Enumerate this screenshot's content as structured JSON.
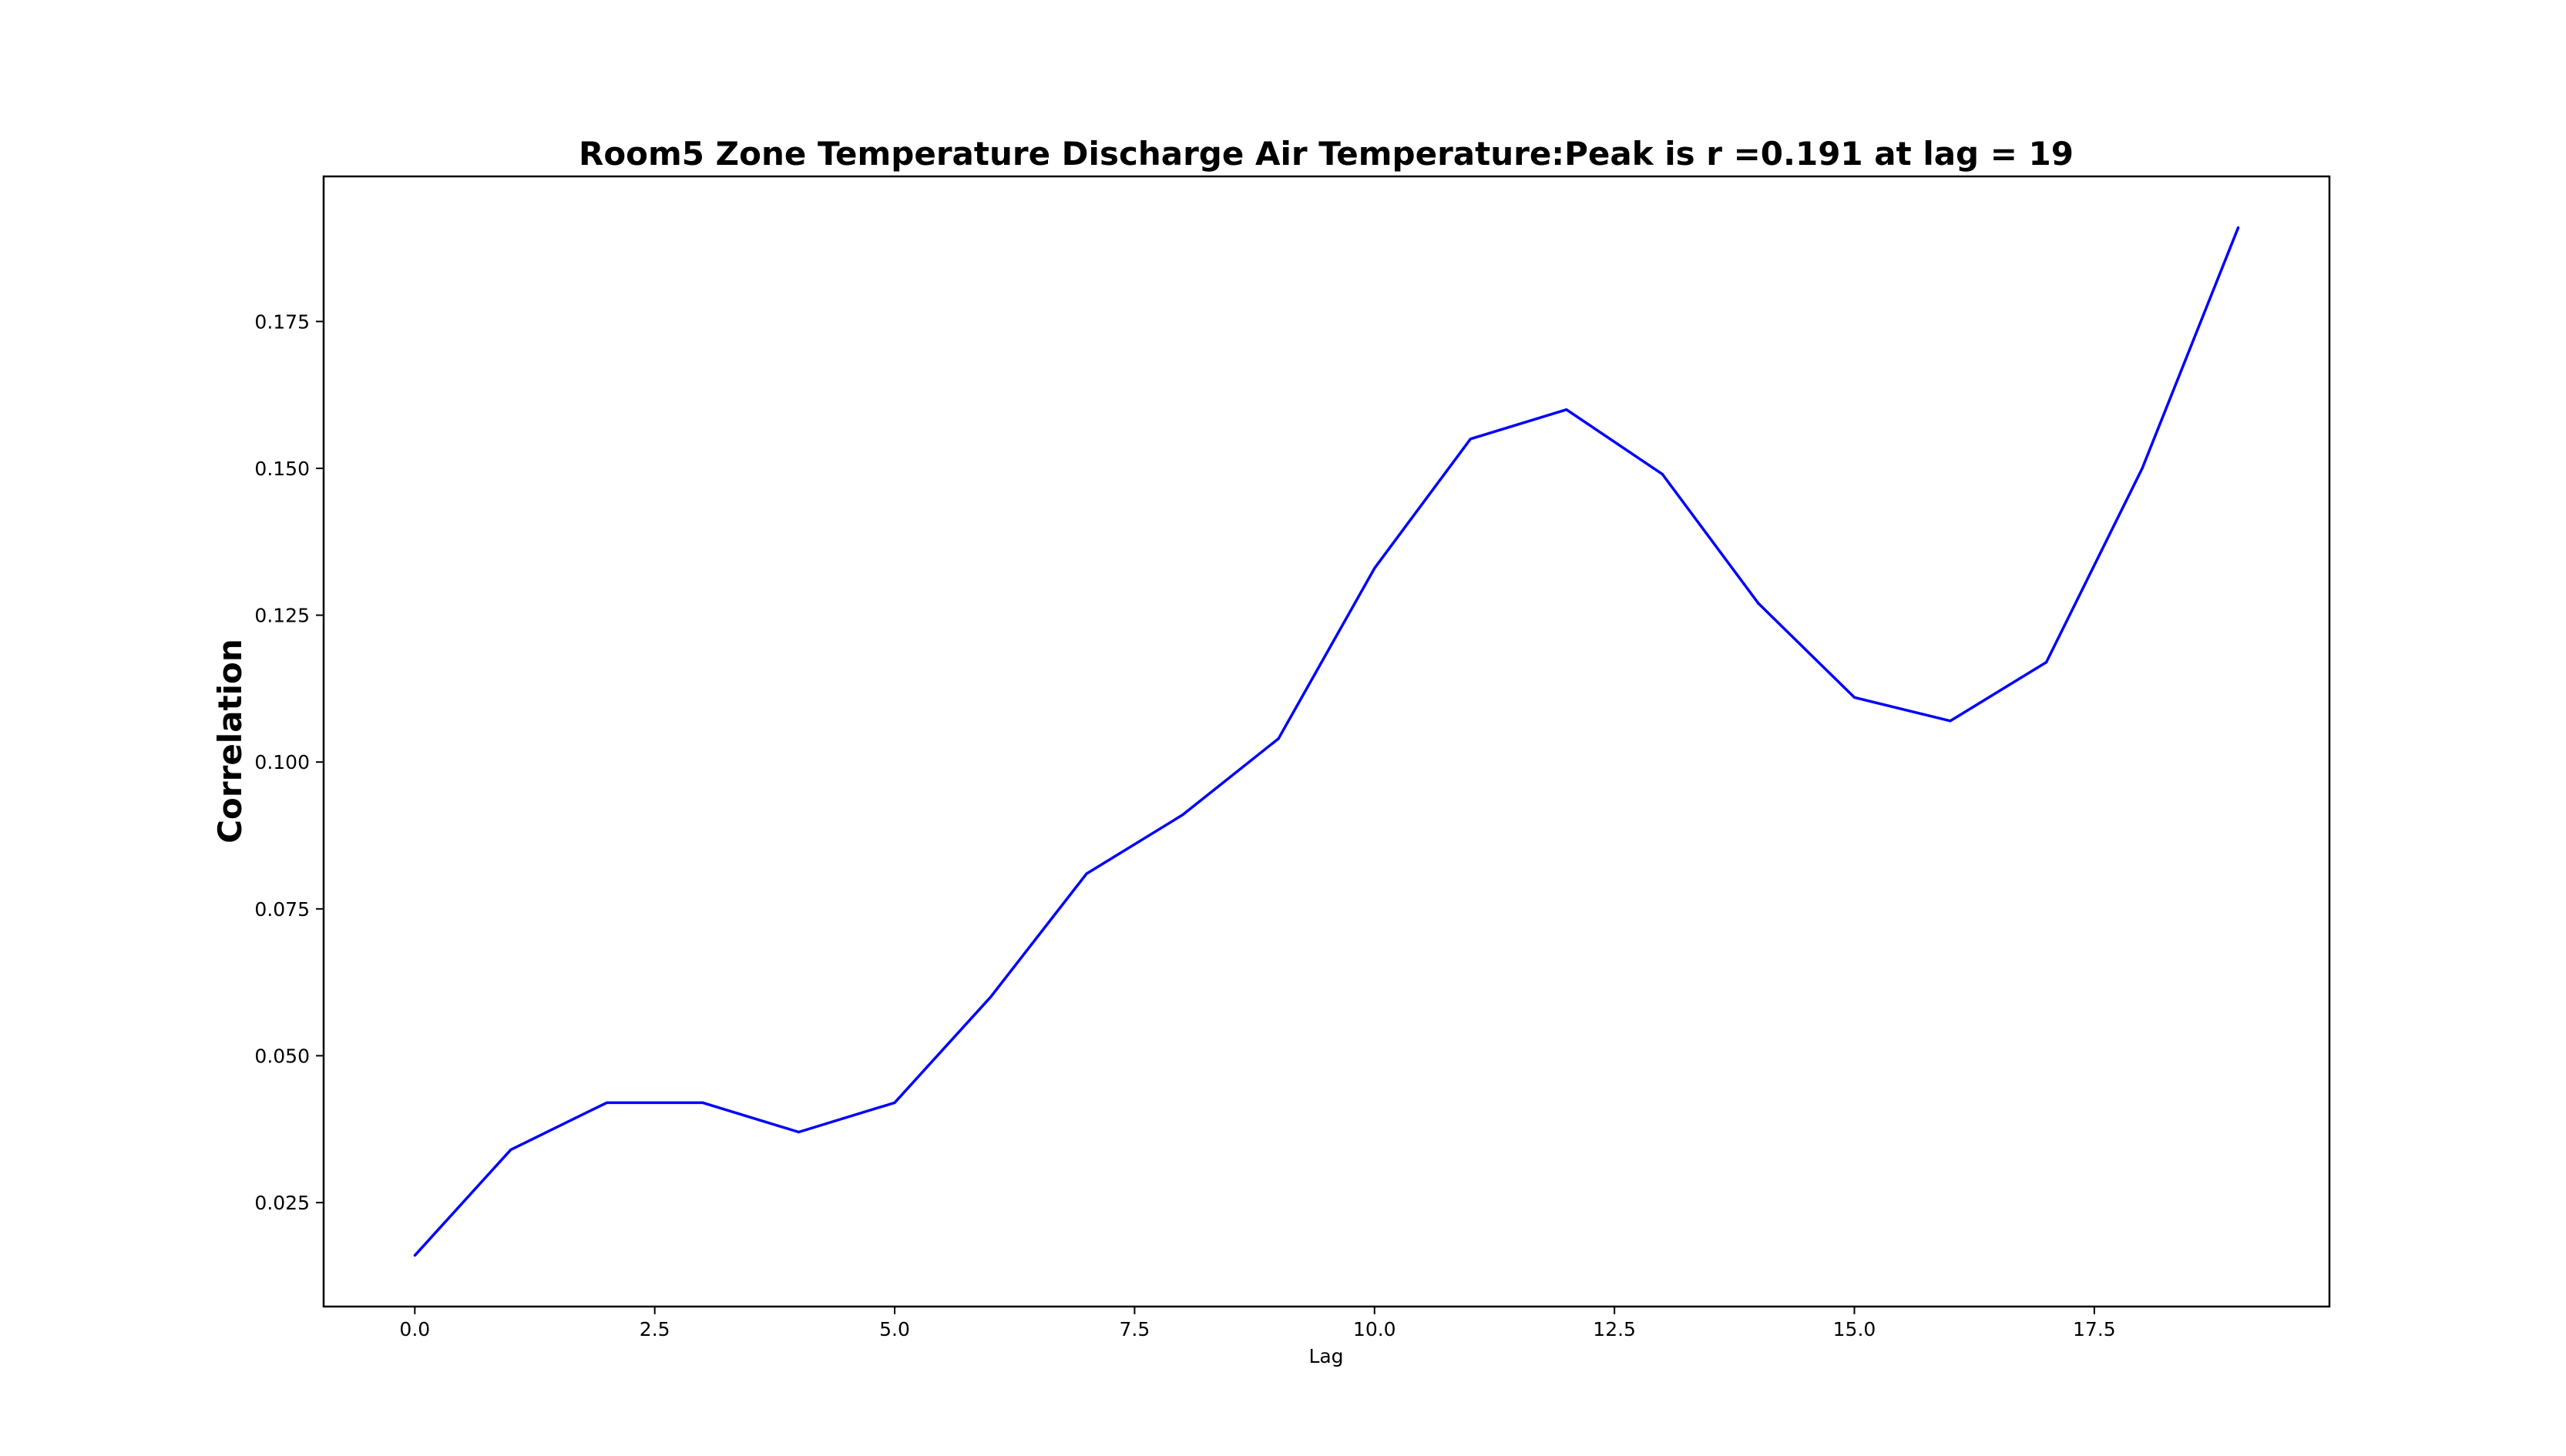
{
  "chart_data": {
    "type": "line",
    "title": "Room5 Zone Temperature Discharge Air Temperature:Peak is r =0.191 at lag = 19",
    "xlabel": "Lag",
    "ylabel": "Correlation",
    "xlim": [
      -0.95,
      19.95
    ],
    "ylim": [
      0.0073,
      0.1997
    ],
    "grid": false,
    "x_ticks": [
      0.0,
      2.5,
      5.0,
      7.5,
      10.0,
      12.5,
      15.0,
      17.5
    ],
    "x_tick_labels": [
      "0.0",
      "2.5",
      "5.0",
      "7.5",
      "10.0",
      "12.5",
      "15.0",
      "17.5"
    ],
    "y_ticks": [
      0.025,
      0.05,
      0.075,
      0.1,
      0.125,
      0.15,
      0.175
    ],
    "y_tick_labels": [
      "0.025",
      "0.050",
      "0.075",
      "0.100",
      "0.125",
      "0.150",
      "0.175"
    ],
    "series": [
      {
        "color": "#0000ff",
        "x": [
          0,
          1,
          2,
          3,
          4,
          5,
          6,
          7,
          8,
          9,
          10,
          11,
          12,
          13,
          14,
          15,
          16,
          17,
          18,
          19
        ],
        "values": [
          0.016,
          0.034,
          0.042,
          0.042,
          0.037,
          0.042,
          0.06,
          0.081,
          0.091,
          0.104,
          0.133,
          0.155,
          0.16,
          0.149,
          0.127,
          0.111,
          0.107,
          0.117,
          0.15,
          0.191
        ]
      }
    ]
  }
}
